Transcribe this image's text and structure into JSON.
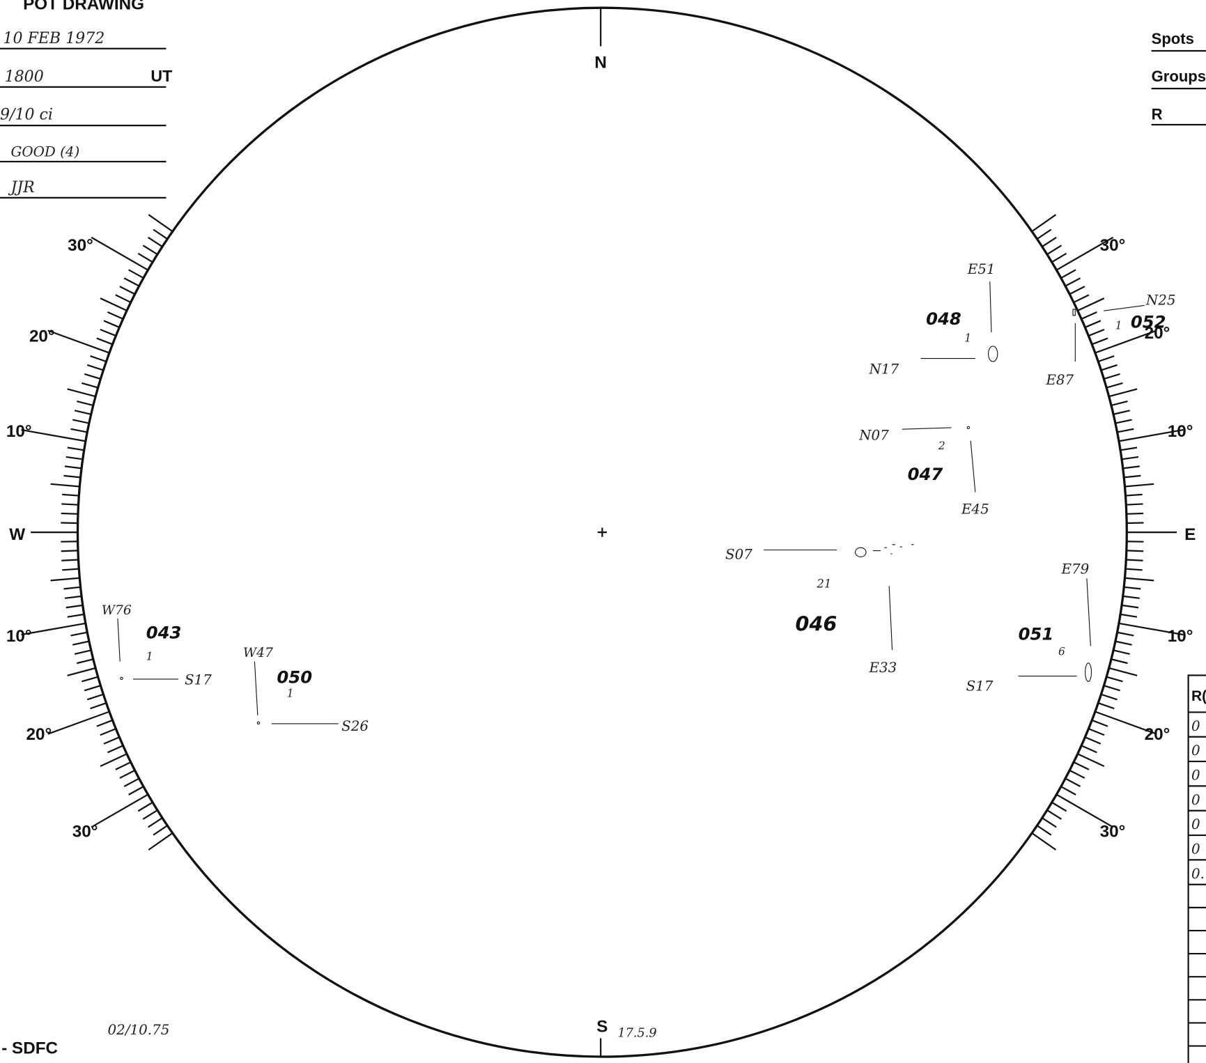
{
  "header": {
    "title": "POT DRAWING",
    "date": "10 FEB 1972",
    "time": "1800",
    "time_unit": "UT",
    "sky": "9/10 ci",
    "seeing": "GOOD (4)",
    "observer": "JJR",
    "spots_label": "Spots",
    "groups_label": "Groups",
    "r_label": "R"
  },
  "compass": {
    "north": "N",
    "south": "S",
    "east": "E",
    "west": "W"
  },
  "latitude_labels": {
    "left": [
      "30°",
      "20°",
      "10°",
      "10°",
      "20°",
      "30°"
    ],
    "right": [
      "30°",
      "20°",
      "10°",
      "10°",
      "20°",
      "30°"
    ]
  },
  "groups": [
    {
      "number": "048",
      "longitude": "E51",
      "latitude": "N17",
      "count": "1"
    },
    {
      "number": "052",
      "longitude": "E87",
      "latitude": "N25",
      "count": "1"
    },
    {
      "number": "047",
      "longitude": "E45",
      "latitude": "N07",
      "count": "2"
    },
    {
      "number": "046",
      "longitude": "E33",
      "latitude": "S07",
      "count": "21"
    },
    {
      "number": "051",
      "longitude": "E79",
      "latitude": "S17",
      "count": "6"
    },
    {
      "number": "043",
      "longitude": "W76",
      "latitude": "S17",
      "count": "1"
    },
    {
      "number": "050",
      "longitude": "W47",
      "latitude": "S26",
      "count": "1"
    }
  ],
  "table": {
    "header": "R(",
    "rows": [
      "0",
      "0",
      "0",
      "0",
      "0",
      "0",
      "0."
    ]
  },
  "footer": {
    "stamp": "02/10.75",
    "agency": "- SDFC",
    "time_note": "17.5.9"
  }
}
